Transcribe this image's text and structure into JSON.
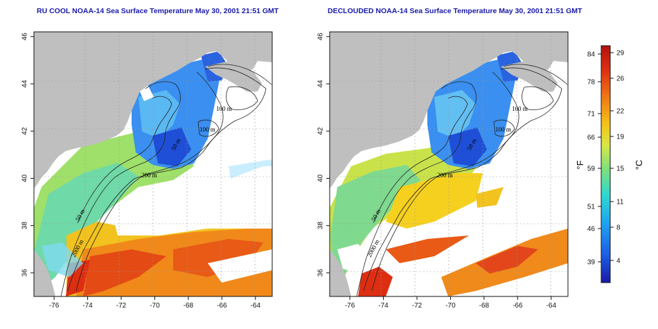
{
  "panels": [
    {
      "id": "left",
      "title": "RU COOL NOAA-14 Sea Surface Temperature May 30, 2001 21:51 GMT",
      "contour_labels": [
        "100 m",
        "100 m",
        "50 m",
        "200 m",
        "50 m",
        "2000 m"
      ],
      "clouds": "present"
    },
    {
      "id": "right",
      "title": "DECLOUDED NOAA-14 Sea Surface Temperature May 30, 2001 21:51 GMT",
      "contour_labels": [
        "100 m",
        "100 m",
        "50 m",
        "200 m",
        "50 m",
        "2000 m"
      ],
      "clouds": "removed"
    }
  ],
  "axes": {
    "lon_ticks": [
      "-76",
      "-74",
      "-72",
      "-70",
      "-68",
      "-66",
      "-64"
    ],
    "lat_ticks": [
      "36",
      "38",
      "40",
      "42",
      "44",
      "46"
    ],
    "lon_range": [
      -77.2,
      -63.0
    ],
    "lat_range": [
      35.0,
      46.2
    ]
  },
  "colorbar": {
    "fahrenheit_label": "°F",
    "celsius_label": "°C",
    "fahrenheit_ticks": [
      "84",
      "78",
      "71",
      "66",
      "59",
      "51",
      "46",
      "39"
    ],
    "celsius_ticks": [
      "29",
      "26",
      "22",
      "19",
      "15",
      "11",
      "8",
      "4"
    ],
    "colors": [
      "#1a1aa8",
      "#1d5fe6",
      "#1fa3f0",
      "#2fd9d0",
      "#7fe07a",
      "#d9e645",
      "#f5c21a",
      "#f07a16",
      "#dd2e12",
      "#b3120f"
    ],
    "land_color": "#bfbfbf"
  }
}
